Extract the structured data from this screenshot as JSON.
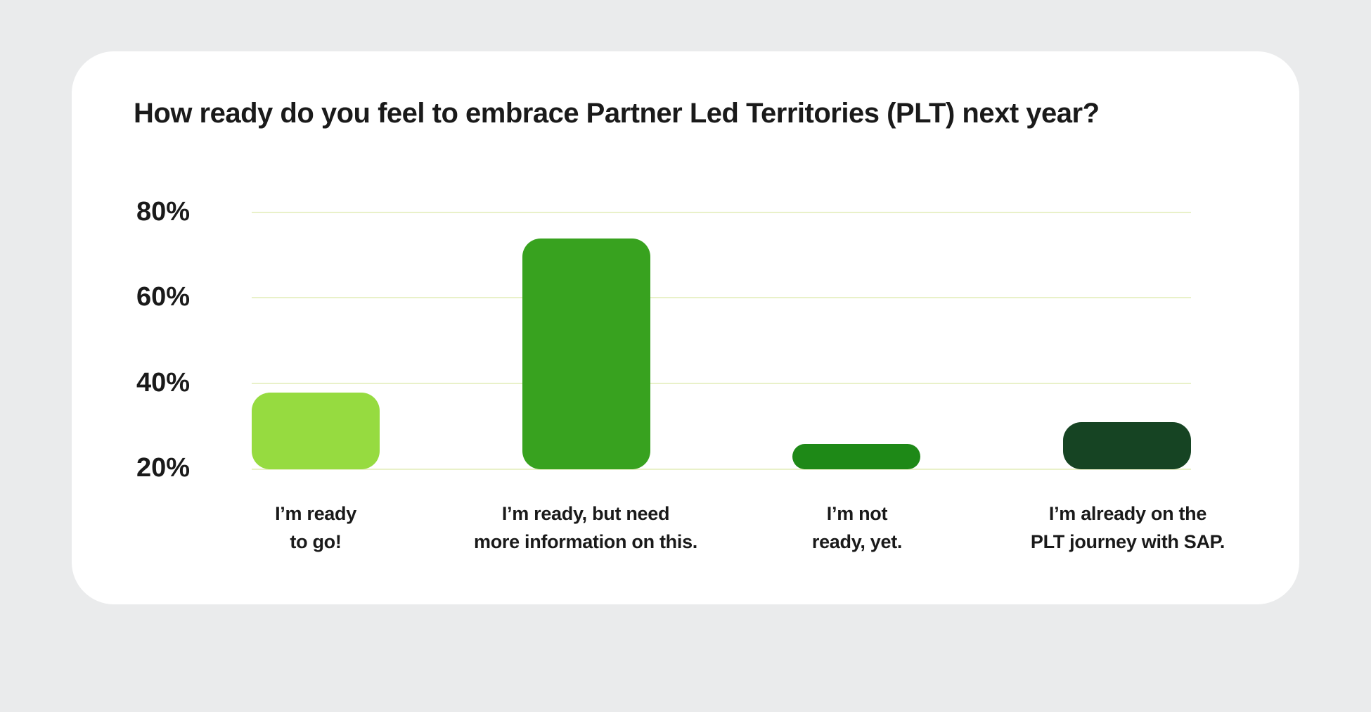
{
  "page": {
    "background_color": "#EAEBEC",
    "card_background_color": "#FFFFFF",
    "text_color": "#1A1A1A"
  },
  "chart_data": {
    "type": "bar",
    "title": "How ready do you feel to embrace Partner Led Territories (PLT) next year?",
    "categories": [
      "I’m ready to go!",
      "I’m ready, but need more information on this.",
      "I’m not ready, yet.",
      "I’m already on the PLT journey with SAP."
    ],
    "category_lines": [
      [
        "I’m ready",
        "to go!"
      ],
      [
        "I’m ready, but need",
        "more information on this."
      ],
      [
        "I’m not",
        "ready, yet."
      ],
      [
        "I’m already on the",
        "PLT journey with SAP."
      ]
    ],
    "values": [
      38,
      74,
      26,
      31
    ],
    "unit": "%",
    "bar_colors": [
      "#96DB40",
      "#38A21F",
      "#1E8917",
      "#164423"
    ],
    "y_ticks": [
      "80%",
      "60%",
      "40%",
      "20%"
    ],
    "y_tick_values": [
      80,
      60,
      40,
      20
    ],
    "axis": {
      "min": 20,
      "max": 80,
      "baseline_label": "20%"
    },
    "grid": true,
    "gridline_color": "#E9F1C9",
    "legend": false,
    "xlabel": "",
    "ylabel": ""
  }
}
